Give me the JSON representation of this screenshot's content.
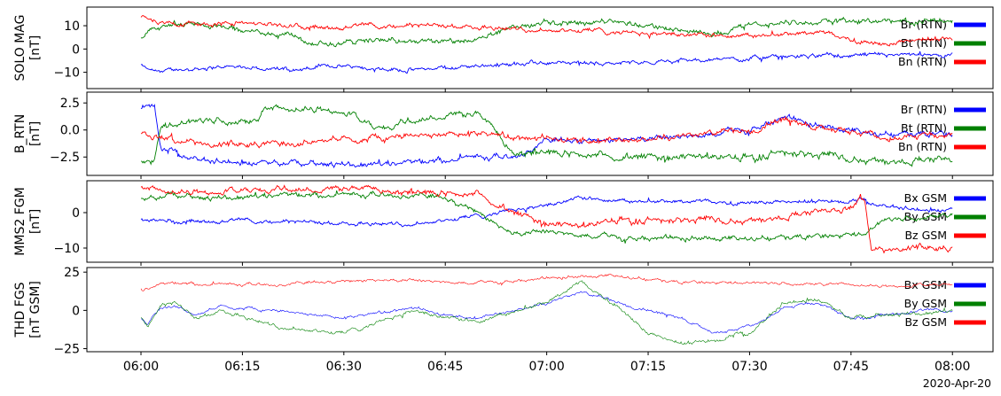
{
  "chart_data": {
    "type": "line",
    "shared_x": {
      "unit": "time",
      "range": [
        "05:52",
        "08:06"
      ],
      "tick_labels": [
        "06:00",
        "06:15",
        "06:30",
        "06:45",
        "07:00",
        "07:15",
        "07:30",
        "07:45",
        "08:00"
      ],
      "date_label": "2020-Apr-20"
    },
    "panels": [
      {
        "id": "solo",
        "ylabel_line1": "SOLO MAG",
        "ylabel_line2": "[nT]",
        "ylim": [
          -17,
          18
        ],
        "yticks": [
          10,
          0,
          -10
        ],
        "ytick_labels": [
          "10",
          "0",
          "−10"
        ],
        "legend_placement": "right",
        "series": [
          {
            "name": "Br (RTN)",
            "color": "#0000ff",
            "noise": 0.6,
            "x": [
              0,
              1,
              2,
              5,
              10,
              15,
              22,
              30,
              40,
              50,
              60,
              70,
              80,
              90,
              100,
              110,
              120
            ],
            "y": [
              -7,
              -9,
              -10,
              -9,
              -8,
              -7.5,
              -9,
              -7,
              -9,
              -7,
              -6,
              -6,
              -5,
              -4,
              -3,
              -3,
              -3
            ]
          },
          {
            "name": "Bt (RTN)",
            "color": "#008000",
            "noise": 0.8,
            "x": [
              0,
              2,
              5,
              10,
              15,
              22,
              25,
              30,
              35,
              40,
              45,
              50,
              55,
              60,
              70,
              80,
              85,
              90,
              100,
              110,
              120
            ],
            "y": [
              5,
              8,
              11,
              10,
              8,
              6,
              2,
              3,
              4,
              3,
              3,
              5,
              9,
              11,
              12,
              8,
              7,
              10,
              12,
              12,
              12
            ]
          },
          {
            "name": "Bn (RTN)",
            "color": "#ff0000",
            "noise": 0.7,
            "x": [
              0,
              2,
              5,
              10,
              15,
              25,
              35,
              45,
              55,
              65,
              75,
              80,
              88,
              95,
              100,
              110,
              115,
              120
            ],
            "y": [
              14,
              12,
              11,
              11,
              11,
              10,
              10,
              10,
              9,
              8,
              7,
              6,
              5,
              6,
              7,
              2,
              4,
              4
            ]
          }
        ]
      },
      {
        "id": "brtn",
        "ylabel_line1": "B_RTN",
        "ylabel_line2": "[nT]",
        "ylim": [
          -4.2,
          3.5
        ],
        "yticks": [
          2.5,
          0.0,
          -2.5
        ],
        "ytick_labels": [
          "2.5",
          "0.0",
          "−2.5"
        ],
        "legend_placement": "right",
        "series": [
          {
            "name": "Br (RTN)",
            "color": "#0000ff",
            "noise": 0.18,
            "x": [
              0,
              1,
              2,
              3,
              10,
              20,
              30,
              40,
              50,
              55,
              60,
              70,
              80,
              90,
              95,
              100,
              110,
              120
            ],
            "y": [
              2,
              2.2,
              2.3,
              -2,
              -2.8,
              -3,
              -3.2,
              -3,
              -2.5,
              -2.5,
              -1,
              -1,
              -0.5,
              0,
              1,
              0.2,
              -0.3,
              -0.5
            ]
          },
          {
            "name": "Bt (RTN)",
            "color": "#008000",
            "noise": 0.22,
            "x": [
              0,
              2,
              3,
              10,
              17,
              18,
              25,
              30,
              35,
              45,
              50,
              55,
              60,
              70,
              80,
              90,
              95,
              100,
              110,
              120
            ],
            "y": [
              -3,
              -2.8,
              0.3,
              1,
              1,
              2,
              2,
              1.8,
              0.1,
              1.5,
              1.5,
              -2,
              -2,
              -2.5,
              -2.5,
              -2.5,
              -2,
              -2.3,
              -2.8,
              -2.8
            ]
          },
          {
            "name": "Bn (RTN)",
            "color": "#ff0000",
            "noise": 0.2,
            "x": [
              0,
              3,
              10,
              20,
              30,
              40,
              50,
              60,
              70,
              80,
              90,
              95,
              100,
              110,
              120
            ],
            "y": [
              -0.3,
              -0.5,
              -1.5,
              -1.2,
              -0.8,
              -0.5,
              -0.3,
              -0.8,
              -1,
              -0.5,
              0,
              1,
              0.3,
              -0.5,
              -0.5
            ]
          }
        ]
      },
      {
        "id": "mms2",
        "ylabel_line1": "MMS2 FGM",
        "ylabel_line2": "[nT]",
        "ylim": [
          -14,
          9
        ],
        "yticks": [
          0,
          -10
        ],
        "ytick_labels": [
          "0",
          "−10"
        ],
        "legend_placement": "right",
        "series": [
          {
            "name": "Bx GSM",
            "color": "#0000ff",
            "noise": 0.4,
            "x": [
              0,
              5,
              10,
              20,
              30,
              40,
              50,
              55,
              60,
              65,
              70,
              80,
              90,
              100,
              107,
              110,
              115,
              120
            ],
            "y": [
              -2,
              -2,
              -2,
              -2.5,
              -3,
              -3,
              -1,
              1,
              2,
              4,
              3,
              3,
              3,
              3,
              3,
              2,
              1,
              1
            ]
          },
          {
            "name": "By GSM",
            "color": "#008000",
            "noise": 0.5,
            "x": [
              0,
              5,
              10,
              20,
              30,
              40,
              45,
              50,
              52,
              55,
              60,
              70,
              80,
              90,
              100,
              107,
              110,
              120
            ],
            "y": [
              4,
              5,
              4,
              5,
              5,
              5,
              4,
              0,
              -3,
              -6,
              -5,
              -7,
              -8,
              -7,
              -7,
              -6,
              -2,
              0
            ]
          },
          {
            "name": "Bz GSM",
            "color": "#ff0000",
            "noise": 0.6,
            "x": [
              0,
              5,
              10,
              20,
              30,
              40,
              50,
              55,
              60,
              65,
              70,
              80,
              90,
              100,
              105,
              107,
              108,
              110,
              115,
              120
            ],
            "y": [
              7,
              6,
              6,
              6.5,
              7,
              6,
              5,
              0,
              -3,
              -4,
              -2,
              -2,
              -2,
              0,
              2,
              5,
              -10,
              -11,
              -10,
              -10
            ]
          }
        ]
      },
      {
        "id": "thd",
        "ylabel_line1": "THD FGS",
        "ylabel_line2": "[nT GSM]",
        "ylim": [
          -27,
          28
        ],
        "yticks": [
          25,
          0,
          -25
        ],
        "ytick_labels": [
          "25",
          "0",
          "−25"
        ],
        "legend_placement": "right",
        "series": [
          {
            "name": "Bx GSM",
            "color": "#0000ff",
            "noise": 0.7,
            "x": [
              0,
              1,
              2,
              3,
              5,
              8,
              12,
              20,
              30,
              40,
              45,
              50,
              60,
              65,
              75,
              80,
              85,
              90,
              95,
              100,
              105,
              110,
              115,
              120
            ],
            "y": [
              -5,
              -10,
              -2,
              2,
              4,
              -3,
              3,
              0,
              -5,
              2,
              -3,
              -5,
              5,
              12,
              0,
              -5,
              -15,
              -10,
              2,
              5,
              -5,
              -2,
              0,
              0
            ]
          },
          {
            "name": "By GSM",
            "color": "#008000",
            "noise": 0.9,
            "x": [
              0,
              1,
              2,
              3,
              5,
              8,
              12,
              20,
              30,
              40,
              45,
              50,
              60,
              65,
              70,
              75,
              80,
              85,
              90,
              95,
              100,
              105,
              110,
              115,
              120
            ],
            "y": [
              -5,
              -10,
              -3,
              3,
              5,
              -5,
              0,
              -10,
              -15,
              0,
              -5,
              -8,
              5,
              18,
              5,
              -15,
              -22,
              -20,
              -15,
              5,
              8,
              -5,
              -3,
              -2,
              0
            ]
          },
          {
            "name": "Bz GSM",
            "color": "#ff0000",
            "noise": 0.7,
            "x": [
              0,
              3,
              5,
              10,
              20,
              30,
              40,
              50,
              60,
              70,
              80,
              90,
              100,
              110,
              120
            ],
            "y": [
              13,
              17,
              18,
              17,
              17,
              19,
              20,
              18,
              20,
              23,
              18,
              18,
              18,
              16,
              17
            ]
          }
        ]
      }
    ]
  }
}
